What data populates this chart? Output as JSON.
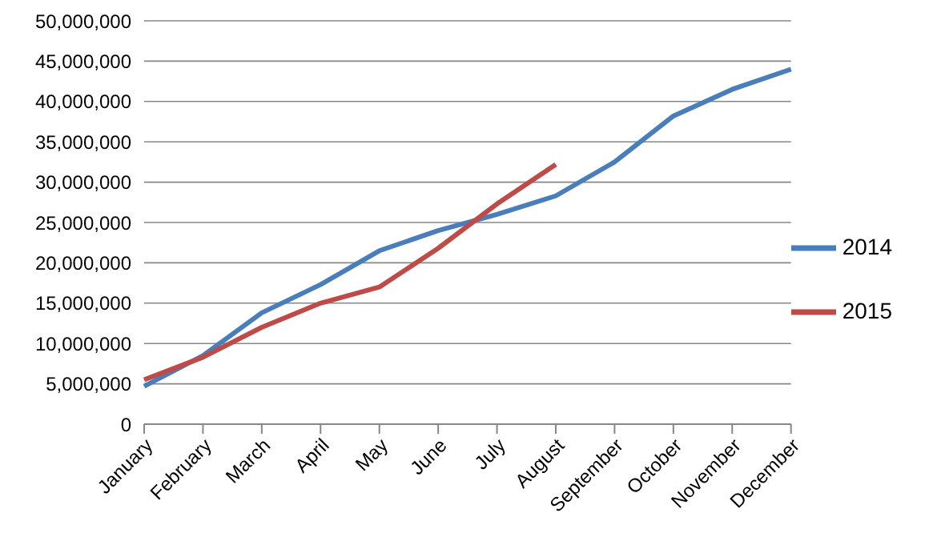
{
  "chart_data": {
    "type": "line",
    "categories": [
      "January",
      "February",
      "March",
      "April",
      "May",
      "June",
      "July",
      "August",
      "September",
      "October",
      "November",
      "December"
    ],
    "series": [
      {
        "name": "2014",
        "color": "#4a7ebb",
        "values": [
          4700000,
          8500000,
          13800000,
          17300000,
          21500000,
          24000000,
          26000000,
          28300000,
          32500000,
          38200000,
          41500000,
          44000000
        ]
      },
      {
        "name": "2015",
        "color": "#be4b48",
        "values": [
          5500000,
          8300000,
          12000000,
          15000000,
          17000000,
          21800000,
          27300000,
          32200000,
          null,
          null,
          null,
          null
        ]
      }
    ],
    "ylim": [
      0,
      50000000
    ],
    "yticks": [
      0,
      {
        "value": 5000000,
        "label": "5,000,000"
      },
      {
        "value": 10000000,
        "label": "10,000,000"
      },
      {
        "value": 15000000,
        "label": "15,000,000"
      },
      {
        "value": 20000000,
        "label": "20,000,000"
      },
      {
        "value": 25000000,
        "label": "25,000,000"
      },
      {
        "value": 30000000,
        "label": "30,000,000"
      },
      {
        "value": 35000000,
        "label": "35,000,000"
      },
      {
        "value": 40000000,
        "label": "40,000,000"
      },
      {
        "value": 45000000,
        "label": "45,000,000"
      },
      {
        "value": 50000000,
        "label": "50,000,000"
      }
    ],
    "grid": "y",
    "legend": "right",
    "marker": "none",
    "line_style": "solid"
  }
}
